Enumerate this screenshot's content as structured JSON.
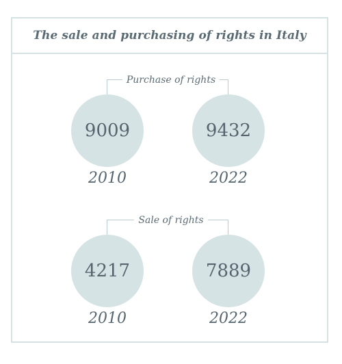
{
  "title": "The sale and purchasing of rights in Italy",
  "sections": [
    {
      "label": "Purchase of rights",
      "items": [
        {
          "year": "2010",
          "value": "9009"
        },
        {
          "year": "2022",
          "value": "9432"
        }
      ]
    },
    {
      "label": "Sale of rights",
      "items": [
        {
          "year": "2010",
          "value": "4217"
        },
        {
          "year": "2022",
          "value": "7889"
        }
      ]
    }
  ],
  "colors": {
    "circle_fill": "#d6e3e5",
    "border": "#d5e1e3",
    "text": "#55656e"
  }
}
